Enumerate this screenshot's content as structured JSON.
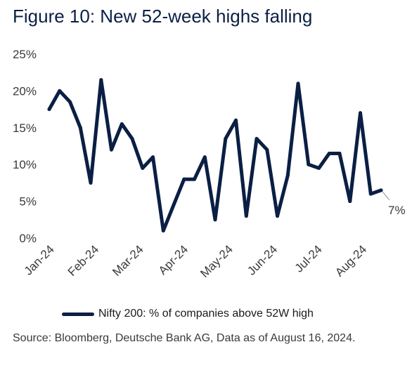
{
  "title": "Figure 10: New 52-week highs falling",
  "source": "Source: Bloomberg, Deutsche Bank AG, Data as of August 16, 2024.",
  "chart_data": {
    "type": "line",
    "title": "Figure 10: New 52-week highs falling",
    "ylim": [
      0,
      25
    ],
    "y_ticks": [
      "0%",
      "5%",
      "10%",
      "15%",
      "20%",
      "25%"
    ],
    "x_tick_labels": [
      "Jan-24",
      "Feb-24",
      "Mar-24",
      "Apr-24",
      "May-24",
      "Jun-24",
      "Jul-24",
      "Aug-24"
    ],
    "grid": false,
    "legend_position": "bottom",
    "end_label": "7%",
    "series": [
      {
        "name": "Nifty 200: % of companies above 52W high",
        "color": "#0b1f44",
        "values": [
          17.5,
          20.0,
          18.5,
          15.0,
          7.5,
          21.5,
          12.0,
          15.5,
          13.5,
          9.5,
          11.0,
          1.0,
          4.5,
          8.0,
          8.0,
          11.0,
          2.5,
          13.5,
          16.0,
          3.0,
          13.5,
          12.0,
          3.0,
          8.5,
          21.0,
          10.0,
          9.5,
          11.5,
          11.5,
          5.0,
          17.0,
          6.0,
          6.5
        ]
      }
    ]
  }
}
